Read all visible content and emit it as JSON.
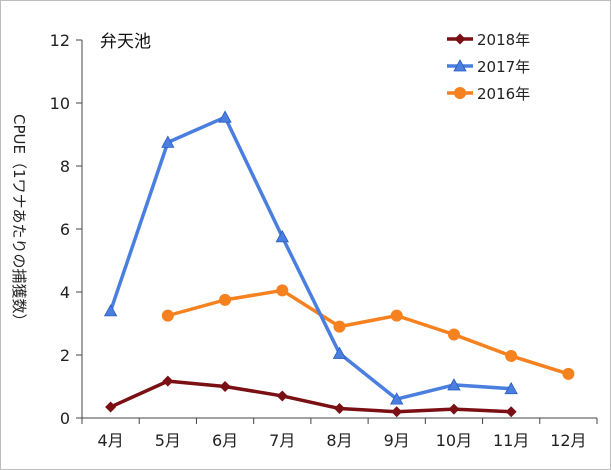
{
  "chart_data": {
    "type": "line",
    "title": "弁天池",
    "xlabel": "",
    "ylabel": "CPUE（1ワナあたりの捕獲数）",
    "categories": [
      "4月",
      "5月",
      "6月",
      "7月",
      "8月",
      "9月",
      "10月",
      "11月",
      "12月"
    ],
    "ylim": [
      0,
      12
    ],
    "yticks": [
      0,
      2,
      4,
      6,
      8,
      10,
      12
    ],
    "grid": false,
    "legend_position": "top-right",
    "series": [
      {
        "name": "2018年",
        "color": "#7a0f14",
        "marker": "diamond",
        "values": [
          0.35,
          1.17,
          1.0,
          0.7,
          0.3,
          0.2,
          0.28,
          0.2,
          null
        ]
      },
      {
        "name": "2017年",
        "color": "#4a7fe0",
        "marker": "triangle",
        "values": [
          3.4,
          8.75,
          9.55,
          5.75,
          2.05,
          0.6,
          1.05,
          0.93,
          null
        ]
      },
      {
        "name": "2016年",
        "color": "#f5811f",
        "marker": "circle",
        "values": [
          null,
          3.25,
          3.75,
          4.05,
          2.9,
          3.25,
          2.65,
          1.97,
          1.4
        ]
      }
    ]
  }
}
